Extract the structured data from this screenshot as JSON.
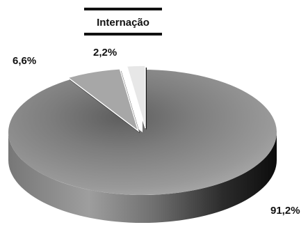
{
  "chart_data": {
    "type": "pie",
    "title": "Internação",
    "slices": [
      {
        "label": "91,2%",
        "value": 91.2,
        "color": "#8c8c8c"
      },
      {
        "label": "6,6%",
        "value": 6.6,
        "color": "#a7a7a7"
      },
      {
        "label": "2,2%",
        "value": 2.2,
        "color": "#e7e7e7"
      }
    ],
    "exploded": [
      "6,6%",
      "2,2%"
    ],
    "style": "3d",
    "legend": "none"
  }
}
